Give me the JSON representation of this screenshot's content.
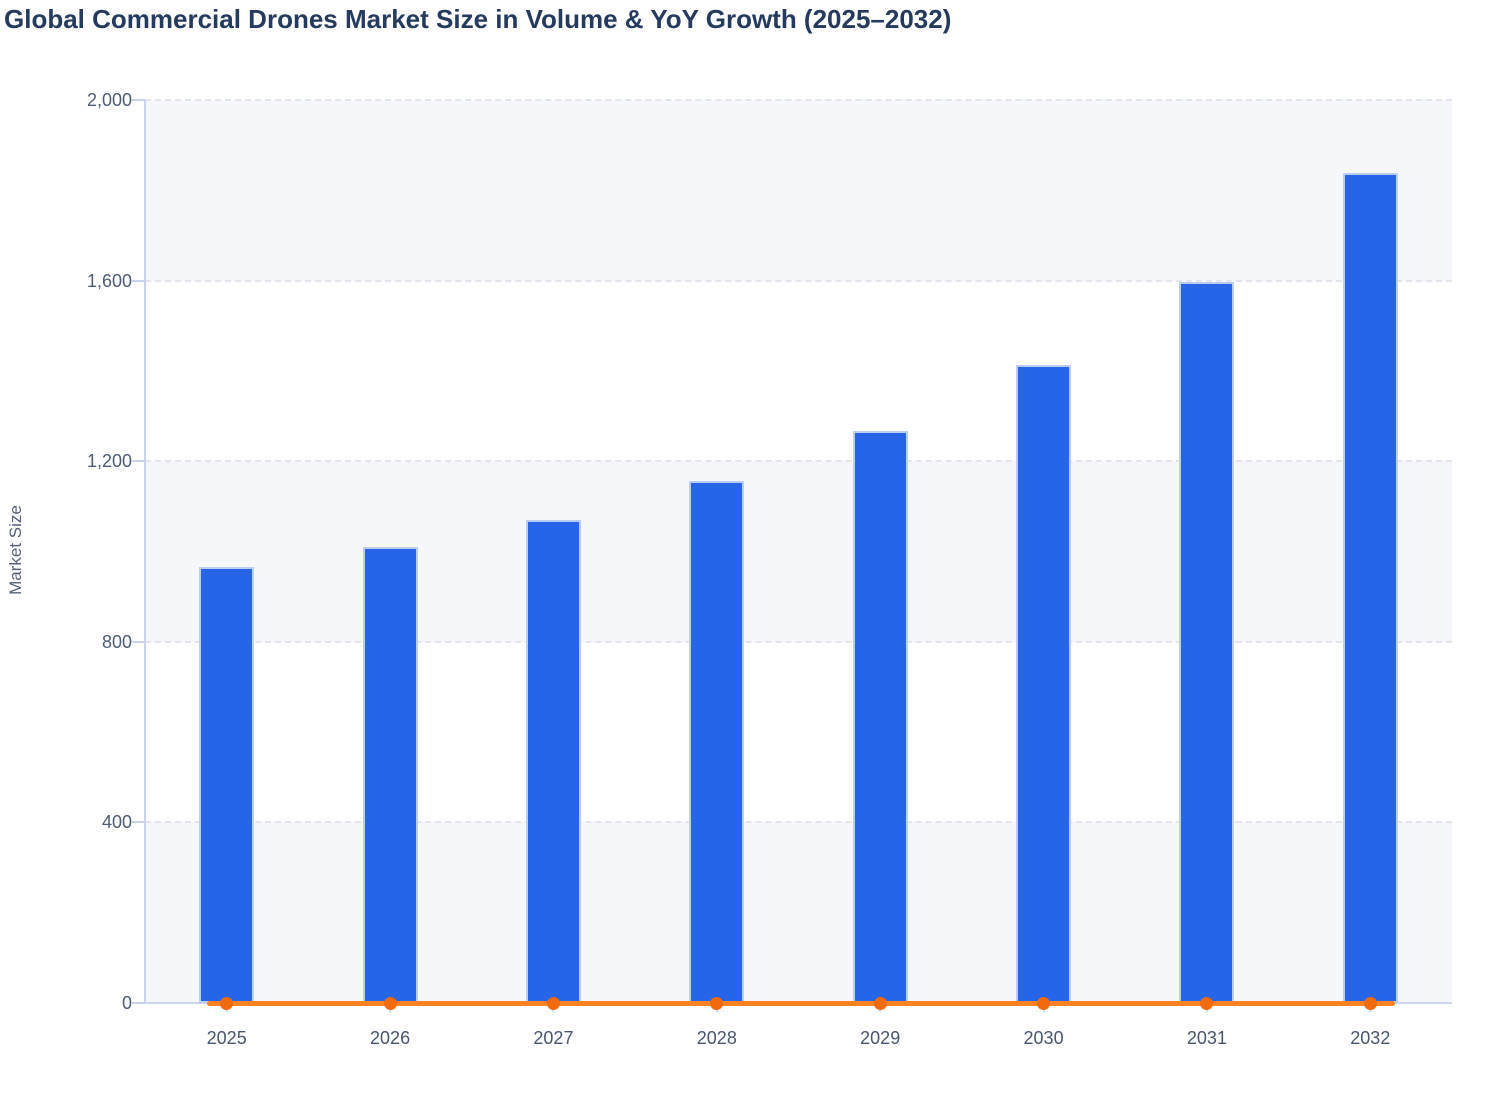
{
  "chart_data": {
    "type": "bar+line",
    "title": "Global Commercial Drones Market Size in Volume & YoY Growth (2025–2032)",
    "ylabel": "Market Size",
    "xlabel": "",
    "categories": [
      "2025",
      "2026",
      "2027",
      "2028",
      "2029",
      "2030",
      "2031",
      "2032"
    ],
    "series": [
      {
        "name": "Market Size",
        "type": "bar",
        "color": "#2765e8",
        "values": [
          965,
          1010,
          1070,
          1156,
          1266,
          1413,
          1598,
          1838
        ]
      },
      {
        "name": "YoY Growth",
        "type": "line",
        "color": "#f98222",
        "point_color": "#f16a0d",
        "values": [
          0,
          0,
          0,
          0,
          0,
          0,
          0,
          0
        ]
      }
    ],
    "ylim": [
      0,
      2000
    ],
    "yticks": [
      0,
      400,
      800,
      1200,
      1600,
      2000
    ],
    "ytick_labels": [
      "0",
      "400",
      "800",
      "1,200",
      "1,600",
      "2,000"
    ],
    "grid": "horizontal-dashed",
    "legend": "none",
    "plot_band_colors": [
      "#f5f7fa",
      "#ffffff"
    ],
    "colors": {
      "title_text": "#243a5e",
      "axis_text": "#4d5b74",
      "axis_line": "#c9d3ee",
      "gridline": "#e2e5ec",
      "bar_stroke": "#bccdf3"
    }
  }
}
